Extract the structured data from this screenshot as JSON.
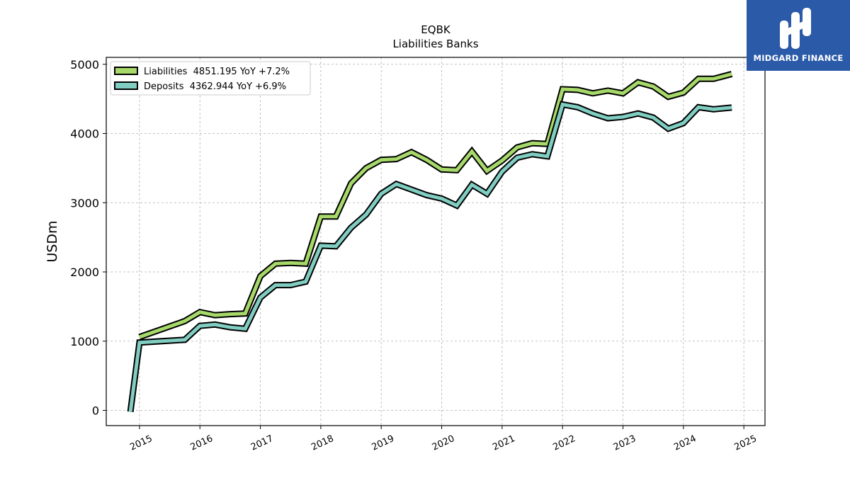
{
  "chart_data": {
    "type": "line",
    "title": "EQBK",
    "subtitle": "Liabilities Banks",
    "xlabel": "",
    "ylabel": "USDm",
    "xlim": [
      2014.45,
      2025.35
    ],
    "ylim": [
      -220,
      5100
    ],
    "xticks": [
      2015,
      2016,
      2017,
      2018,
      2019,
      2020,
      2021,
      2022,
      2023,
      2024,
      2025
    ],
    "xtick_labels": [
      "2015",
      "2016",
      "2017",
      "2018",
      "2019",
      "2020",
      "2021",
      "2022",
      "2023",
      "2024",
      "2025"
    ],
    "yticks": [
      0,
      1000,
      2000,
      3000,
      4000,
      5000
    ],
    "ytick_labels": [
      "0",
      "1000",
      "2000",
      "3000",
      "4000",
      "5000"
    ],
    "grid": true,
    "legend_position": "top-left",
    "series": [
      {
        "name": "Liabilities  4851.195 YoY +7.2%",
        "color": "#a6d96a",
        "points": [
          [
            2015.0,
            1060
          ],
          [
            2015.75,
            1290
          ],
          [
            2016.0,
            1420
          ],
          [
            2016.25,
            1375
          ],
          [
            2016.5,
            1390
          ],
          [
            2016.75,
            1400
          ],
          [
            2017.0,
            1940
          ],
          [
            2017.25,
            2120
          ],
          [
            2017.5,
            2130
          ],
          [
            2017.75,
            2120
          ],
          [
            2018.0,
            2800
          ],
          [
            2018.25,
            2800
          ],
          [
            2018.5,
            3280
          ],
          [
            2018.75,
            3500
          ],
          [
            2019.0,
            3620
          ],
          [
            2019.25,
            3630
          ],
          [
            2019.5,
            3730
          ],
          [
            2019.75,
            3620
          ],
          [
            2020.0,
            3480
          ],
          [
            2020.25,
            3470
          ],
          [
            2020.5,
            3740
          ],
          [
            2020.75,
            3460
          ],
          [
            2021.0,
            3610
          ],
          [
            2021.25,
            3800
          ],
          [
            2021.5,
            3860
          ],
          [
            2021.75,
            3850
          ],
          [
            2022.0,
            4640
          ],
          [
            2022.25,
            4630
          ],
          [
            2022.5,
            4580
          ],
          [
            2022.75,
            4620
          ],
          [
            2023.0,
            4580
          ],
          [
            2023.25,
            4740
          ],
          [
            2023.5,
            4680
          ],
          [
            2023.75,
            4530
          ],
          [
            2024.0,
            4590
          ],
          [
            2024.25,
            4790
          ],
          [
            2024.5,
            4790
          ],
          [
            2024.8,
            4860
          ]
        ]
      },
      {
        "name": "Deposits  4362.944 YoY +6.9%",
        "color": "#80cdc1",
        "points": [
          [
            2014.85,
            -20
          ],
          [
            2015.0,
            980
          ],
          [
            2015.75,
            1020
          ],
          [
            2016.0,
            1220
          ],
          [
            2016.25,
            1240
          ],
          [
            2016.5,
            1200
          ],
          [
            2016.75,
            1180
          ],
          [
            2017.0,
            1630
          ],
          [
            2017.25,
            1810
          ],
          [
            2017.5,
            1810
          ],
          [
            2017.75,
            1860
          ],
          [
            2018.0,
            2380
          ],
          [
            2018.25,
            2370
          ],
          [
            2018.5,
            2640
          ],
          [
            2018.75,
            2830
          ],
          [
            2019.0,
            3130
          ],
          [
            2019.25,
            3270
          ],
          [
            2019.5,
            3190
          ],
          [
            2019.75,
            3110
          ],
          [
            2020.0,
            3060
          ],
          [
            2020.25,
            2960
          ],
          [
            2020.5,
            3260
          ],
          [
            2020.75,
            3130
          ],
          [
            2021.0,
            3450
          ],
          [
            2021.25,
            3650
          ],
          [
            2021.5,
            3700
          ],
          [
            2021.75,
            3670
          ],
          [
            2022.0,
            4420
          ],
          [
            2022.25,
            4380
          ],
          [
            2022.5,
            4290
          ],
          [
            2022.75,
            4220
          ],
          [
            2023.0,
            4240
          ],
          [
            2023.25,
            4290
          ],
          [
            2023.5,
            4230
          ],
          [
            2023.75,
            4070
          ],
          [
            2024.0,
            4150
          ],
          [
            2024.25,
            4380
          ],
          [
            2024.5,
            4350
          ],
          [
            2024.8,
            4375
          ]
        ]
      }
    ]
  },
  "logo": {
    "text": "MIDGARD FINANCE",
    "background": "#2a5aa8"
  }
}
